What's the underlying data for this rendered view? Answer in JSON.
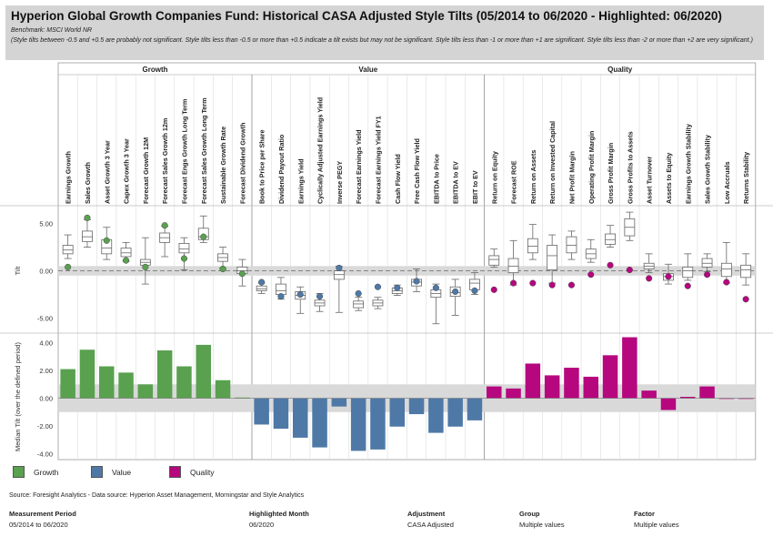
{
  "header": {
    "title": "Hyperion Global Growth Companies Fund: Historical CASA Adjusted Style Tilts (05/2014 to 06/2020 - Highlighted: 06/2020)",
    "benchmark": "Benchmark: MSCI World NR",
    "note": "(Style tilts between -0.5 and +0.5 are probably not significant. Style tilts less than -0.5 or more than +0.5 indicate a tilt exists but may not be significant. Style tilts less than -1 or more than +1 are significant. Style tilts less than -2 or more than +2 are very significant.)"
  },
  "colors": {
    "Growth": "#59a14f",
    "Value": "#4e79a7",
    "Quality": "#b6077f",
    "band": "#d9d9d9"
  },
  "chart_data": [
    {
      "type": "boxplot",
      "ylabel": "Tilt",
      "ylim": [
        -6.2,
        6.5
      ],
      "yticks": [
        5,
        0,
        -5
      ],
      "ytick_labels": [
        "5.00",
        "0.00",
        "-5.00"
      ],
      "significance_band": [
        -0.5,
        0.5
      ],
      "groups": [
        "Growth",
        "Value",
        "Quality"
      ],
      "categories": [
        "Earnings Growth",
        "Sales Growth",
        "Asset Growth 3 Year",
        "Capex Growth 3 Year",
        "Forecast Growth 12M",
        "Forecast Sales Growth 12m",
        "Forecast Engs Growth Long Term",
        "Forecast Sales Growth Long Term",
        "Sustainable Growth Rate",
        "Forecast Dividend Growth",
        "Book to Price per Share",
        "Dividend Payout Ratio",
        "Earnings Yield",
        "Cyclically Adjusted Earnings Yield",
        "Inverse PEGY",
        "Forecast Earnings Yield",
        "Forecast Earnings Yield FY1",
        "Cash Flow Yield",
        "Free Cash Flow Yield",
        "EBITDA to Price",
        "EBITDA to EV",
        "EBIT to EV",
        "Return on Equity",
        "Forecast ROE",
        "Return on Assets",
        "Return on Invested Capital",
        "Net Profit Margin",
        "Operating Profit Margin",
        "Gross Profit Margin",
        "Gross Profits to Assets",
        "Asset Turnover",
        "Assets to Equity",
        "Earnings Growth Stability",
        "Sales Growth Stability",
        "Low Accruals",
        "Returns Stability"
      ],
      "category_group": [
        "Growth",
        "Growth",
        "Growth",
        "Growth",
        "Growth",
        "Growth",
        "Growth",
        "Growth",
        "Growth",
        "Growth",
        "Value",
        "Value",
        "Value",
        "Value",
        "Value",
        "Value",
        "Value",
        "Value",
        "Value",
        "Value",
        "Value",
        "Value",
        "Quality",
        "Quality",
        "Quality",
        "Quality",
        "Quality",
        "Quality",
        "Quality",
        "Quality",
        "Quality",
        "Quality",
        "Quality",
        "Quality",
        "Quality",
        "Quality"
      ],
      "stats": [
        {
          "min": 1.3,
          "q1": 1.8,
          "median": 2.2,
          "q3": 2.7,
          "max": 3.8,
          "current": 0.4
        },
        {
          "min": 2.5,
          "q1": 3.1,
          "median": 3.6,
          "q3": 4.2,
          "max": 5.4,
          "current": 5.6
        },
        {
          "min": 1.2,
          "q1": 1.8,
          "median": 2.4,
          "q3": 3.3,
          "max": 4.6,
          "current": 3.2
        },
        {
          "min": 1.0,
          "q1": 1.5,
          "median": 1.9,
          "q3": 2.4,
          "max": 3.0,
          "current": 1.1
        },
        {
          "min": -1.4,
          "q1": 0.6,
          "median": 0.9,
          "q3": 1.2,
          "max": 3.5,
          "current": 0.4
        },
        {
          "min": 1.5,
          "q1": 3.0,
          "median": 3.5,
          "q3": 4.0,
          "max": 4.7,
          "current": 4.8
        },
        {
          "min": 0.1,
          "q1": 1.9,
          "median": 2.3,
          "q3": 2.9,
          "max": 3.5,
          "current": 1.3
        },
        {
          "min": 3.0,
          "q1": 3.3,
          "median": 3.6,
          "q3": 4.5,
          "max": 5.8,
          "current": 3.6
        },
        {
          "min": 0.3,
          "q1": 1.0,
          "median": 1.4,
          "q3": 1.8,
          "max": 2.5,
          "current": 0.2
        },
        {
          "min": -1.6,
          "q1": -0.3,
          "median": 0.0,
          "q3": 0.4,
          "max": 1.2,
          "current": -0.3
        },
        {
          "min": -2.4,
          "q1": -2.1,
          "median": -1.9,
          "q3": -1.6,
          "max": -1.3,
          "current": -1.2
        },
        {
          "min": -3.0,
          "q1": -2.5,
          "median": -2.1,
          "q3": -1.4,
          "max": -0.7,
          "current": -2.7
        },
        {
          "min": -4.5,
          "q1": -3.0,
          "median": -2.6,
          "q3": -2.2,
          "max": -1.7,
          "current": -2.5
        },
        {
          "min": -4.3,
          "q1": -3.7,
          "median": -3.4,
          "q3": -3.1,
          "max": -2.4,
          "current": -2.7
        },
        {
          "min": -4.4,
          "q1": -0.9,
          "median": -0.4,
          "q3": 0.0,
          "max": 0.5,
          "current": 0.3
        },
        {
          "min": -4.2,
          "q1": -3.9,
          "median": -3.5,
          "q3": -3.2,
          "max": -2.8,
          "current": -2.4
        },
        {
          "min": -4.0,
          "q1": -3.7,
          "median": -3.4,
          "q3": -3.1,
          "max": -2.8,
          "current": -1.7
        },
        {
          "min": -2.6,
          "q1": -2.4,
          "median": -2.1,
          "q3": -1.8,
          "max": -1.5,
          "current": -1.8
        },
        {
          "min": -2.2,
          "q1": -1.6,
          "median": -1.2,
          "q3": -0.9,
          "max": 0.2,
          "current": -1.1
        },
        {
          "min": -5.6,
          "q1": -2.8,
          "median": -2.4,
          "q3": -2.0,
          "max": -1.4,
          "current": -1.8
        },
        {
          "min": -4.7,
          "q1": -2.7,
          "median": -2.3,
          "q3": -1.7,
          "max": -0.9,
          "current": -2.2
        },
        {
          "min": -2.5,
          "q1": -2.0,
          "median": -1.3,
          "q3": -0.9,
          "max": -0.2,
          "current": -2.1
        },
        {
          "min": 0.4,
          "q1": 0.6,
          "median": 1.2,
          "q3": 1.6,
          "max": 2.3,
          "current": -2.0
        },
        {
          "min": -1.5,
          "q1": -0.2,
          "median": 0.5,
          "q3": 1.3,
          "max": 3.2,
          "current": -1.3
        },
        {
          "min": 1.2,
          "q1": 1.9,
          "median": 2.6,
          "q3": 3.4,
          "max": 4.9,
          "current": -1.3
        },
        {
          "min": -1.3,
          "q1": 0.1,
          "median": 1.6,
          "q3": 2.7,
          "max": 3.8,
          "current": -1.5
        },
        {
          "min": 1.2,
          "q1": 1.9,
          "median": 2.7,
          "q3": 3.6,
          "max": 4.2,
          "current": -1.5
        },
        {
          "min": 0.9,
          "q1": 1.3,
          "median": 1.8,
          "q3": 2.3,
          "max": 3.3,
          "current": -0.4
        },
        {
          "min": 2.5,
          "q1": 2.8,
          "median": 3.3,
          "q3": 3.9,
          "max": 4.8,
          "current": 0.6
        },
        {
          "min": 3.2,
          "q1": 3.7,
          "median": 4.6,
          "q3": 5.5,
          "max": 6.2,
          "current": 0.1
        },
        {
          "min": -0.2,
          "q1": 0.2,
          "median": 0.5,
          "q3": 0.8,
          "max": 1.8,
          "current": -0.8
        },
        {
          "min": -1.4,
          "q1": -1.0,
          "median": -0.6,
          "q3": -0.3,
          "max": 0.7,
          "current": -0.6
        },
        {
          "min": -1.0,
          "q1": -0.7,
          "median": 0.0,
          "q3": 0.4,
          "max": 1.8,
          "current": -1.6
        },
        {
          "min": -0.1,
          "q1": 0.4,
          "median": 0.8,
          "q3": 1.3,
          "max": 1.8,
          "current": -0.4
        },
        {
          "min": -1.3,
          "q1": -0.6,
          "median": 0.2,
          "q3": 0.8,
          "max": 3.0,
          "current": -1.2
        },
        {
          "min": -1.5,
          "q1": -0.7,
          "median": 0.1,
          "q3": 0.6,
          "max": 1.8,
          "current": -3.0
        }
      ]
    },
    {
      "type": "bar",
      "ylabel": "Median Tilt (over the defined period)",
      "ylim": [
        -4.3,
        4.5
      ],
      "yticks": [
        4,
        2,
        0,
        -2,
        -4
      ],
      "ytick_labels": [
        "4.00",
        "2.00",
        "0.00",
        "-2.00",
        "-4.00"
      ],
      "significance_band": [
        -1,
        1
      ],
      "values": [
        2.1,
        3.5,
        2.3,
        1.85,
        1.0,
        3.45,
        2.3,
        3.85,
        1.3,
        0.05,
        -1.9,
        -2.2,
        -2.85,
        -3.55,
        -0.6,
        -3.8,
        -3.7,
        -2.05,
        -1.15,
        -2.5,
        -2.05,
        -1.6,
        0.85,
        0.7,
        2.5,
        1.65,
        2.2,
        1.55,
        3.1,
        4.4,
        0.55,
        -0.85,
        0.1,
        0.85,
        -0.05,
        -0.05
      ]
    }
  ],
  "legend": [
    {
      "label": "Growth",
      "color": "#59a14f"
    },
    {
      "label": "Value",
      "color": "#4e79a7"
    },
    {
      "label": "Quality",
      "color": "#b6077f"
    }
  ],
  "source": "Source: Foresight Analytics - Data source: Hyperion Asset Management, Morningstar and Style Analytics",
  "footer": [
    {
      "label": "Measurement Period",
      "value": "05/2014 to 06/2020"
    },
    {
      "label": "Highlighted Month",
      "value": "06/2020"
    },
    {
      "label": "Adjustment",
      "value": "CASA Adjusted"
    },
    {
      "label": "Group",
      "value": "Multiple values"
    },
    {
      "label": "Factor",
      "value": "Multiple values"
    }
  ]
}
